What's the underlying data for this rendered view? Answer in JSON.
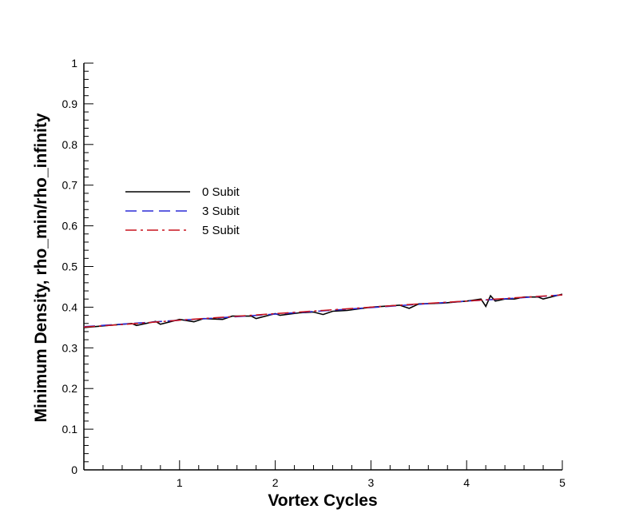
{
  "chart_data": {
    "type": "line",
    "xlabel": "Vortex Cycles",
    "ylabel": "Minimum Density, rho_min/rho_infinity",
    "xlim": [
      0.0,
      5.0
    ],
    "ylim": [
      0.0,
      1.0
    ],
    "x_ticks": [
      1,
      2,
      3,
      4,
      5
    ],
    "x_tick_labels": [
      "1",
      "2",
      "3",
      "4",
      "5"
    ],
    "y_ticks": [
      0,
      0.1,
      0.2,
      0.3,
      0.4,
      0.5,
      0.6,
      0.7,
      0.8,
      0.9,
      1
    ],
    "y_tick_labels": [
      "0",
      "0.1",
      "0.2",
      "0.3",
      "0.4",
      "0.5",
      "0.6",
      "0.7",
      "0.8",
      "0.9",
      "1"
    ],
    "grid": false,
    "legend_position": "left",
    "series": [
      {
        "name": "0 Subit",
        "color": "#000000",
        "dash": "solid",
        "x": [
          0.0,
          0.25,
          0.5,
          0.55,
          0.75,
          0.8,
          1.0,
          1.15,
          1.25,
          1.45,
          1.55,
          1.75,
          1.8,
          2.0,
          2.05,
          2.25,
          2.4,
          2.5,
          2.6,
          2.75,
          3.0,
          3.3,
          3.4,
          3.5,
          3.75,
          4.0,
          4.15,
          4.2,
          4.25,
          4.3,
          4.4,
          4.5,
          4.6,
          4.75,
          4.8,
          5.0
        ],
        "y": [
          0.35,
          0.355,
          0.36,
          0.355,
          0.365,
          0.358,
          0.37,
          0.364,
          0.372,
          0.37,
          0.378,
          0.378,
          0.372,
          0.384,
          0.38,
          0.386,
          0.388,
          0.382,
          0.39,
          0.392,
          0.4,
          0.405,
          0.397,
          0.408,
          0.41,
          0.415,
          0.42,
          0.402,
          0.428,
          0.415,
          0.42,
          0.42,
          0.425,
          0.425,
          0.42,
          0.432
        ]
      },
      {
        "name": "3 Subit",
        "color": "#2a2ad6",
        "dash": "dashed",
        "x": [
          0.0,
          0.5,
          1.0,
          1.5,
          2.0,
          2.5,
          3.0,
          3.5,
          4.0,
          4.5,
          5.0
        ],
        "y": [
          0.352,
          0.36,
          0.368,
          0.375,
          0.383,
          0.391,
          0.399,
          0.407,
          0.415,
          0.422,
          0.43
        ]
      },
      {
        "name": "5 Subit",
        "color": "#c8141e",
        "dash": "dash-dot",
        "x": [
          0.0,
          0.5,
          1.0,
          1.5,
          2.0,
          2.5,
          3.0,
          3.5,
          4.0,
          4.5,
          5.0
        ],
        "y": [
          0.351,
          0.359,
          0.368,
          0.376,
          0.384,
          0.392,
          0.4,
          0.408,
          0.415,
          0.423,
          0.43
        ]
      }
    ]
  }
}
